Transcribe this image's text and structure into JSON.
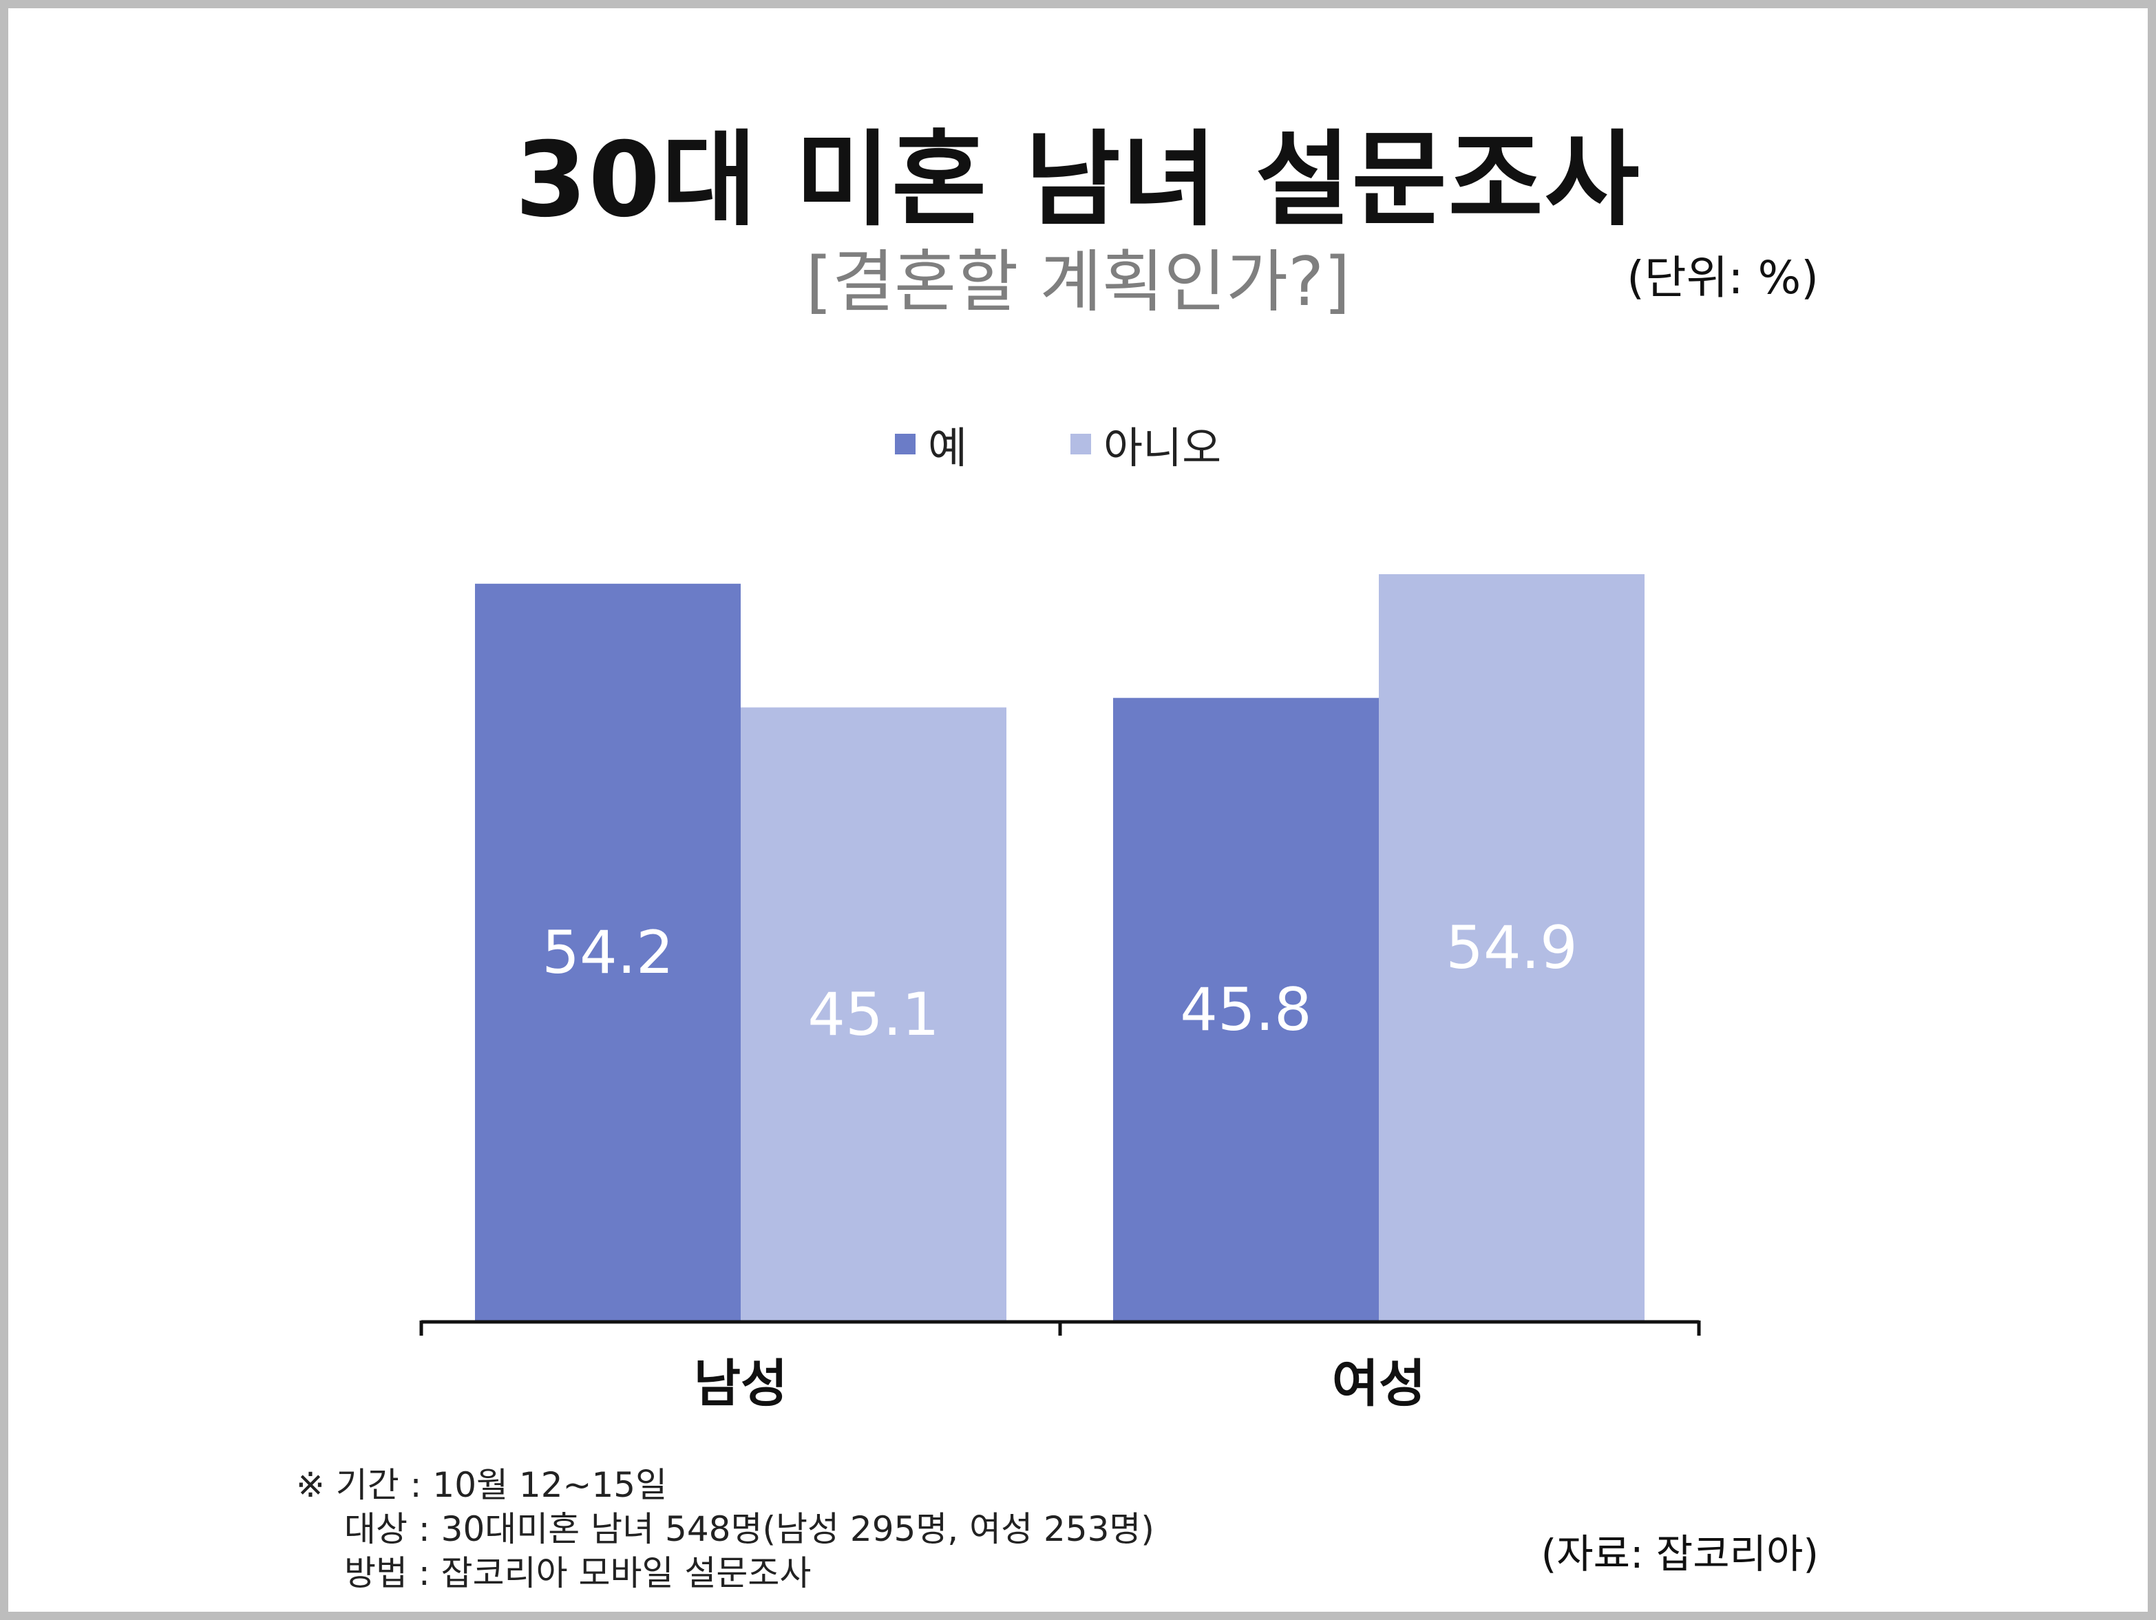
{
  "chart_data": {
    "type": "bar",
    "title": "30대 미혼 남녀 설문조사",
    "subtitle": "[결혼할 계획인가?]",
    "unit": "(단위: %)",
    "categories": [
      "남성",
      "여성"
    ],
    "series": [
      {
        "name": "예",
        "color": "#6b7cc7",
        "values": [
          54.2,
          45.8
        ]
      },
      {
        "name": "아니오",
        "color": "#b3bde4",
        "values": [
          45.1,
          54.9
        ]
      }
    ],
    "ylim": [
      0,
      54.9
    ],
    "grid": false,
    "legend_position": "top-center"
  },
  "notes": {
    "period": "※ 기간 : 10월 12~15일",
    "target": "대상 : 30대미혼 남녀 548명(남성 295명, 여성 253명)",
    "method": "방법 : 잡코리아 모바일 설문조사"
  },
  "source": "(자료: 잡코리아)"
}
